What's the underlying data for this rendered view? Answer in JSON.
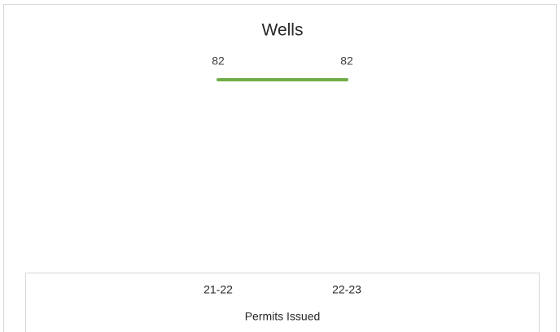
{
  "chart_data": {
    "type": "line",
    "title": "Wells",
    "categories": [
      "21-22",
      "22-23"
    ],
    "values": [
      82,
      82
    ],
    "color": "#70ad47",
    "xlabel": "Permits Issued"
  }
}
